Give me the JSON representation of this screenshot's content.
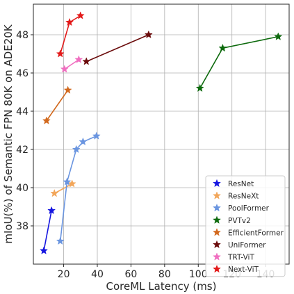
{
  "chart_data": {
    "type": "line",
    "title": "",
    "xlabel": "CoreML Latency (ms)",
    "ylabel": "mIoU(%) of Semantic FPN 80K on ADE20K",
    "xlim": [
      2,
      154
    ],
    "ylim": [
      36.0,
      49.6
    ],
    "xticks": [
      20,
      40,
      60,
      80,
      100,
      120,
      140
    ],
    "yticks": [
      38,
      40,
      42,
      44,
      46,
      48
    ],
    "grid": true,
    "legend_position": "bottom-right",
    "marker": "star",
    "series": [
      {
        "name": "ResNet",
        "color": "#1515e0",
        "points": [
          [
            8.2,
            36.7
          ],
          [
            12.8,
            38.8
          ]
        ]
      },
      {
        "name": "ResNeXt",
        "color": "#f2a65a",
        "points": [
          [
            14.5,
            39.7
          ],
          [
            25.0,
            40.2
          ]
        ]
      },
      {
        "name": "PoolFormer",
        "color": "#6a95e0",
        "points": [
          [
            18.0,
            37.2
          ],
          [
            22.0,
            40.3
          ],
          [
            27.5,
            42.0
          ],
          [
            31.5,
            42.4
          ],
          [
            39.5,
            42.7
          ]
        ]
      },
      {
        "name": "PVTv2",
        "color": "#0d6a0d",
        "points": [
          [
            101.0,
            45.2
          ],
          [
            114.5,
            47.3
          ],
          [
            147.5,
            47.9
          ]
        ]
      },
      {
        "name": "EfficientFormer",
        "color": "#d2691e",
        "points": [
          [
            9.8,
            43.5
          ],
          [
            22.5,
            45.1
          ]
        ]
      },
      {
        "name": "UniFormer",
        "color": "#6b0c0c",
        "points": [
          [
            33.5,
            46.6
          ],
          [
            70.5,
            48.0
          ]
        ]
      },
      {
        "name": "TRT-ViT",
        "color": "#f06ec0",
        "points": [
          [
            20.5,
            46.2
          ],
          [
            29.0,
            46.7
          ]
        ]
      },
      {
        "name": "Next-ViT",
        "color": "#e31a1a",
        "points": [
          [
            18.0,
            47.0
          ],
          [
            23.5,
            48.65
          ],
          [
            30.0,
            49.0
          ]
        ]
      }
    ]
  }
}
